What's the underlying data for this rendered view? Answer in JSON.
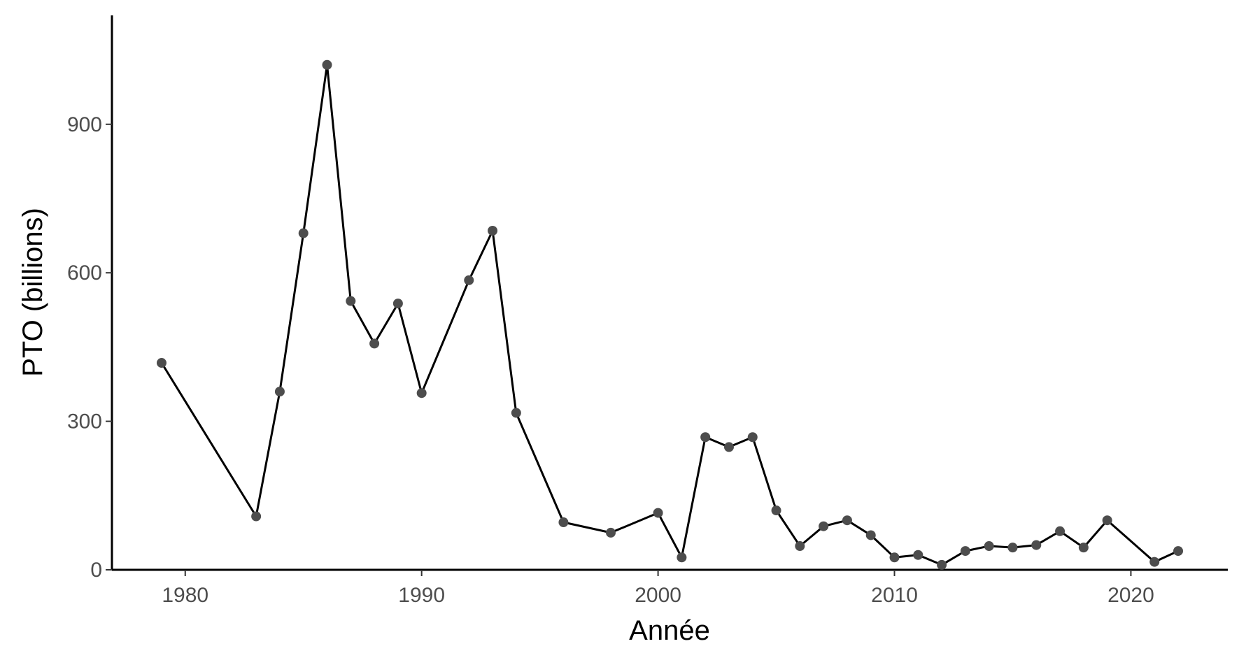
{
  "chart_data": {
    "type": "line",
    "title": "",
    "xlabel": "Année",
    "ylabel": "PTO (billions)",
    "xlim": [
      1976.9,
      2024.1
    ],
    "ylim": [
      0,
      1120
    ],
    "x_ticks": [
      1980,
      1990,
      2000,
      2010,
      2020
    ],
    "y_ticks": [
      0,
      300,
      600,
      900
    ],
    "grid": false,
    "legend": "none",
    "colors": {
      "line": "#000000",
      "points": "#4d4d4d",
      "axis": "#000000"
    },
    "series": [
      {
        "x": [
          1979,
          1983,
          1984,
          1985,
          1986,
          1987,
          1988,
          1989,
          1990,
          1992,
          1993,
          1994,
          1996,
          1998,
          2000,
          2001,
          2002,
          2003,
          2004,
          2005,
          2006,
          2007,
          2008,
          2009,
          2010,
          2011,
          2012,
          2013,
          2014,
          2015,
          2016,
          2017,
          2018,
          2019,
          2021,
          2022
        ],
        "y": [
          418,
          108,
          360,
          680,
          1020,
          543,
          457,
          538,
          357,
          585,
          685,
          317,
          96,
          75,
          115,
          25,
          268,
          248,
          268,
          120,
          48,
          88,
          100,
          70,
          25,
          30,
          10,
          38,
          48,
          45,
          50,
          78,
          45,
          100,
          16,
          38
        ]
      }
    ]
  }
}
